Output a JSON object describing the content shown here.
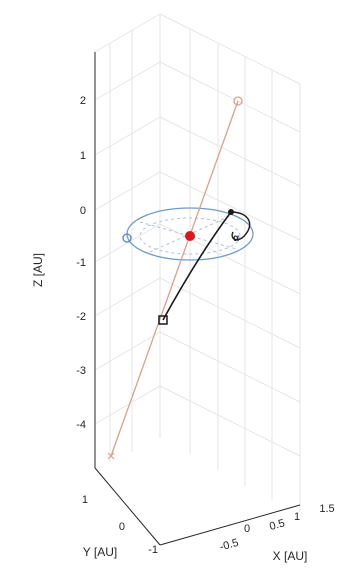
{
  "chart_data": {
    "type": "scatter3d",
    "title": "",
    "zlabel": "Z [AU]",
    "xlabel": "X [AU]",
    "ylabel": "Y [AU]",
    "z_ticks": [
      "2",
      "1",
      "0",
      "-1",
      "-2",
      "-3",
      "-4"
    ],
    "y_ticks": [
      "1",
      "0",
      "-1"
    ],
    "x_ticks": [
      "-0.5",
      "0",
      "0.5",
      "1",
      "1.5"
    ],
    "grid": true,
    "colors": {
      "axis": "#262626",
      "grid": "#e3e3e3",
      "orbit": "#6f9bc8",
      "incoming": "#d9a08a",
      "trajectory": "#1a1a1a",
      "sun": "#e0161d"
    },
    "markers": [
      {
        "name": "Sun",
        "x": 0,
        "y": 0,
        "z": -0.45
      },
      {
        "name": "start",
        "x": 0.9,
        "y": 0.3,
        "z": 2.0
      },
      {
        "name": "intercept",
        "x": -0.1,
        "y": 0.4,
        "z": -2.0
      },
      {
        "name": "end",
        "x": 0.1,
        "y": -0.1,
        "z": -4.5
      }
    ],
    "z_range": [
      -4.7,
      2.4
    ]
  }
}
